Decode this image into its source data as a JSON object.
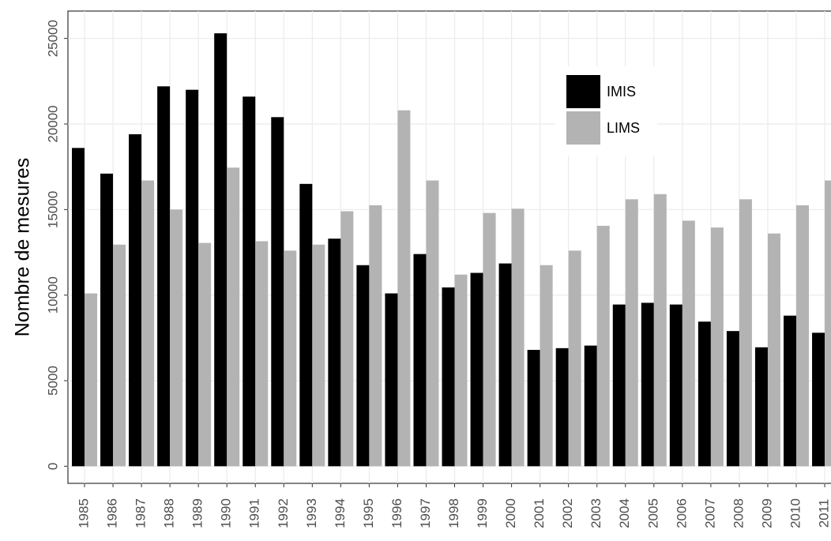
{
  "chart_data": {
    "type": "bar",
    "y_label": "Nombre de mesures",
    "categories": [
      "1985",
      "1986",
      "1987",
      "1988",
      "1989",
      "1990",
      "1991",
      "1992",
      "1993",
      "1994",
      "1995",
      "1996",
      "1997",
      "1998",
      "1999",
      "2000",
      "2001",
      "2002",
      "2003",
      "2004",
      "2005",
      "2006",
      "2007",
      "2008",
      "2009",
      "2010",
      "2011"
    ],
    "series": [
      {
        "name": "IMIS",
        "color": "#000000",
        "values": [
          18600,
          17100,
          19400,
          22200,
          22000,
          25300,
          21600,
          20400,
          16500,
          13300,
          11750,
          10100,
          12400,
          10450,
          11300,
          11850,
          6800,
          6900,
          7050,
          9450,
          9550,
          9450,
          8450,
          7900,
          6950,
          8800,
          7800
        ]
      },
      {
        "name": "LIMS",
        "color": "#b3b3b3",
        "values": [
          10100,
          12950,
          16700,
          15000,
          13050,
          17450,
          13150,
          12600,
          12950,
          14900,
          15250,
          20800,
          16700,
          11200,
          14800,
          15050,
          11750,
          12600,
          14050,
          15600,
          15900,
          14350,
          13950,
          15600,
          13600,
          15250,
          16700
        ]
      }
    ],
    "ylim": [
      -1000,
      26600
    ],
    "yticks": [
      0,
      5000,
      10000,
      15000,
      20000,
      25000
    ],
    "grid": true
  }
}
